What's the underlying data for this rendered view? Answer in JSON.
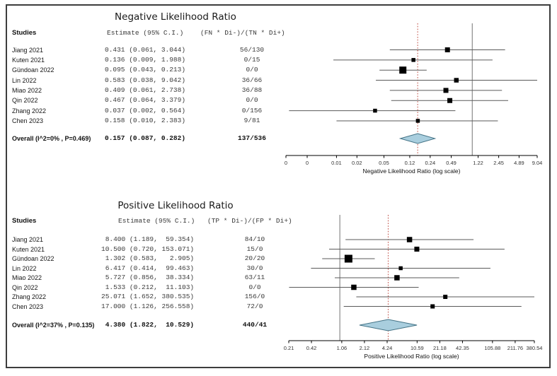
{
  "figure": {
    "background": "#ffffff",
    "border_color": "#3d3d3d",
    "colors": {
      "square": "#000000",
      "ci_line": "#5a5a5a",
      "ref_line": "#8a8a8a",
      "summary_line": "#c4574e",
      "diamond_fill": "#a9cede",
      "diamond_stroke": "#447386",
      "axis": "#000000",
      "tick_label": "#333333"
    }
  },
  "chart_data": [
    {
      "type": "forest",
      "scale": "log",
      "title": "Negative Likelihood Ratio",
      "columns": {
        "studies": "Studies",
        "estimate": "Estimate (95% C.I.)",
        "counts": "(FN * Di-)/(TN * Di+)"
      },
      "studies": [
        {
          "name": "Jiang 2021",
          "est": 0.431,
          "lo": 0.061,
          "hi": 3.044,
          "estimate_text": "0.431 (0.061, 3.044)",
          "counts": "56/130",
          "size": 7
        },
        {
          "name": "Kuten 2021",
          "est": 0.136,
          "lo": 0.009,
          "hi": 1.988,
          "estimate_text": "0.136 (0.009, 1.988)",
          "counts": "0/15",
          "size": 5.5
        },
        {
          "name": "Gündoan 2022",
          "est": 0.095,
          "lo": 0.043,
          "hi": 0.213,
          "estimate_text": "0.095 (0.043, 0.213)",
          "counts": "0/0",
          "size": 10
        },
        {
          "name": "Lin 2022",
          "est": 0.583,
          "lo": 0.038,
          "hi": 9.042,
          "estimate_text": "0.583 (0.038, 9.042)",
          "counts": "36/66",
          "size": 6.5
        },
        {
          "name": "Miao 2022",
          "est": 0.409,
          "lo": 0.061,
          "hi": 2.738,
          "estimate_text": "0.409 (0.061, 2.738)",
          "counts": "36/88",
          "size": 7
        },
        {
          "name": "Qin 2022",
          "est": 0.467,
          "lo": 0.064,
          "hi": 3.379,
          "estimate_text": "0.467 (0.064, 3.379)",
          "counts": "0/0",
          "size": 7
        },
        {
          "name": "Zhang 2022",
          "est": 0.037,
          "lo": 0.002,
          "hi": 0.564,
          "estimate_text": "0.037 (0.002, 0.564)",
          "counts": "0/156",
          "size": 5.5
        },
        {
          "name": "Chen 2023",
          "est": 0.158,
          "lo": 0.01,
          "hi": 2.383,
          "estimate_text": "0.158 (0.010, 2.383)",
          "counts": "9/81",
          "size": 5.5
        }
      ],
      "overall": {
        "label": "Overall (I^2=0% , P=0.469)",
        "est": 0.157,
        "lo": 0.087,
        "hi": 0.282,
        "estimate_text": "0.157 (0.087, 0.282)",
        "counts": "137/536"
      },
      "axis": {
        "label": "Negative Likelihood Ratio (log scale)",
        "ref_value": 1,
        "summary_value": 0.157,
        "ticks": [
          {
            "v": 0.0018,
            "label": "0"
          },
          {
            "v": 0.0037,
            "label": "0"
          },
          {
            "v": 0.01,
            "label": "0.01"
          },
          {
            "v": 0.02,
            "label": "0.02"
          },
          {
            "v": 0.05,
            "label": "0.05"
          },
          {
            "v": 0.12,
            "label": "0.12"
          },
          {
            "v": 0.24,
            "label": "0.24"
          },
          {
            "v": 0.49,
            "label": "0.49"
          },
          {
            "v": 1.22,
            "label": "1.22"
          },
          {
            "v": 2.45,
            "label": "2.45"
          },
          {
            "v": 4.89,
            "label": "4.89"
          },
          {
            "v": 9.04,
            "label": "9.04"
          }
        ]
      }
    },
    {
      "type": "forest",
      "scale": "log",
      "title": "Positive Likelihood Ratio",
      "columns": {
        "studies": "Studies",
        "estimate": "Estimate (95% C.I.)",
        "counts": "(TP * Di-)/(FP * Di+)"
      },
      "studies": [
        {
          "name": "Jiang 2021",
          "est": 8.4,
          "lo": 1.189,
          "hi": 59.354,
          "estimate_text": " 8.400 (1.189,  59.354)",
          "counts": "84/10",
          "size": 7.5
        },
        {
          "name": "Kuten 2021",
          "est": 10.5,
          "lo": 0.72,
          "hi": 153.071,
          "estimate_text": "10.500 (0.720, 153.071)",
          "counts": "15/0",
          "size": 7
        },
        {
          "name": "Gündoan 2022",
          "est": 1.302,
          "lo": 0.583,
          "hi": 2.905,
          "estimate_text": " 1.302 (0.583,   2.905)",
          "counts": "20/20",
          "size": 11
        },
        {
          "name": "Lin 2022",
          "est": 6.417,
          "lo": 0.414,
          "hi": 99.463,
          "estimate_text": " 6.417 (0.414,  99.463)",
          "counts": "30/0",
          "size": 5.5
        },
        {
          "name": "Miao 2022",
          "est": 5.727,
          "lo": 0.856,
          "hi": 38.334,
          "estimate_text": " 5.727 (0.856,  38.334)",
          "counts": "63/11",
          "size": 7.5
        },
        {
          "name": "Qin 2022",
          "est": 1.533,
          "lo": 0.212,
          "hi": 11.103,
          "estimate_text": " 1.533 (0.212,  11.103)",
          "counts": "0/0",
          "size": 7.5
        },
        {
          "name": "Zhang 2022",
          "est": 25.071,
          "lo": 1.652,
          "hi": 380.535,
          "estimate_text": "25.071 (1.652, 380.535)",
          "counts": "156/0",
          "size": 6
        },
        {
          "name": "Chen 2023",
          "est": 17.0,
          "lo": 1.126,
          "hi": 256.558,
          "estimate_text": "17.000 (1.126, 256.558)",
          "counts": "72/0",
          "size": 6
        }
      ],
      "overall": {
        "label": "Overall (I^2=37% , P=0.135)",
        "est": 4.38,
        "lo": 1.822,
        "hi": 10.529,
        "estimate_text": " 4.380 (1.822,  10.529)",
        "counts": "440/41"
      },
      "axis": {
        "label": "Positive Likelihood Ratio (log scale)",
        "ref_value": 1,
        "summary_value": 4.38,
        "ticks": [
          {
            "v": 0.21,
            "label": "0.21"
          },
          {
            "v": 0.42,
            "label": "0.42"
          },
          {
            "v": 1.06,
            "label": "1.06"
          },
          {
            "v": 2.12,
            "label": "2.12"
          },
          {
            "v": 4.24,
            "label": "4.24"
          },
          {
            "v": 10.59,
            "label": "10.59"
          },
          {
            "v": 21.18,
            "label": "21.18"
          },
          {
            "v": 42.35,
            "label": "42.35"
          },
          {
            "v": 105.88,
            "label": "105.88"
          },
          {
            "v": 211.76,
            "label": "211.76"
          },
          {
            "v": 380.54,
            "label": "380.54"
          }
        ]
      }
    }
  ]
}
